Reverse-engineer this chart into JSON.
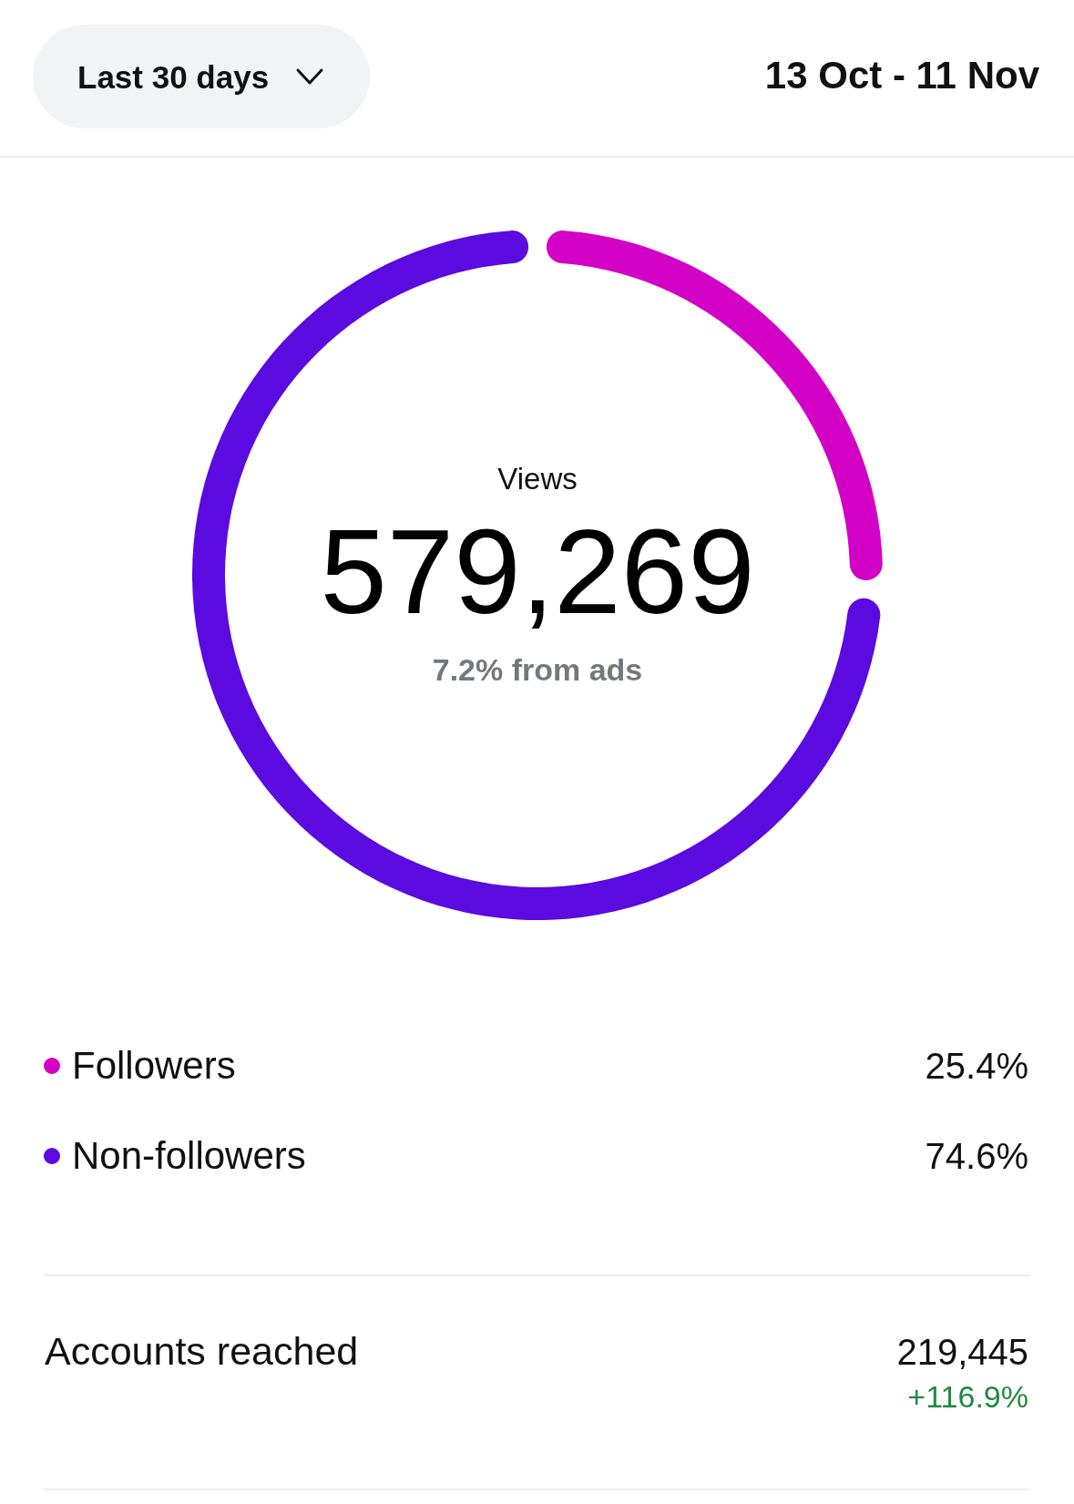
{
  "chart_data": {
    "type": "donut",
    "title": "Views",
    "categories": [
      "Followers",
      "Non-followers"
    ],
    "values": [
      25.4,
      74.6
    ],
    "colors": [
      "#d300c5",
      "#5b0ae0"
    ],
    "value_labels": [
      "25.4%",
      "74.6%"
    ],
    "legend": "bottom",
    "annotations": [
      "579,269",
      "7.2% from ads",
      "Last 30 days",
      "13 Oct - 11 Nov",
      "Accounts reached",
      "219,445",
      "+116.9%"
    ]
  }
}
